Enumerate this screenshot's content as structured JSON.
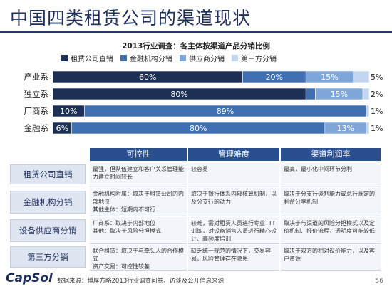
{
  "title": "中国四类租赁公司的渠道现状",
  "chart_data": {
    "type": "bar",
    "orientation": "horizontal",
    "stacked": true,
    "title": "2013行业调查：各主体按渠道产品分销比例",
    "categories": [
      "产业系",
      "独立系",
      "厂商系",
      "金融系"
    ],
    "series": [
      {
        "name": "租赁公司直销",
        "values": [
          60,
          80,
          10,
          6
        ],
        "labels": [
          "60%",
          "80%",
          "10%",
          "6%"
        ],
        "color": "#1c2f55"
      },
      {
        "name": "金融机构分销",
        "values": [
          20,
          3,
          89,
          80
        ],
        "labels": [
          "20%",
          "3%",
          "89%",
          "80%"
        ],
        "color": "#3f6fb0"
      },
      {
        "name": "供应商分销",
        "values": [
          15,
          15,
          0,
          13
        ],
        "labels": [
          "15%",
          "15%",
          "",
          "13%"
        ],
        "color": "#7fa6d8"
      },
      {
        "name": "第三方分销",
        "values": [
          5,
          2,
          1,
          1
        ],
        "labels": [
          "5%",
          "2%",
          "1%",
          "1%"
        ],
        "color": "#c3d6ef"
      }
    ],
    "xlim": [
      0,
      100
    ],
    "legend": "top"
  },
  "table": {
    "headers": [
      "可控性",
      "管理难度",
      "渠道利润率"
    ],
    "rows": [
      {
        "label": "租赁公司直销",
        "cells": [
          "最强，但队伍建立和客户关系管理能力建立时间较长",
          "较容易",
          "最高，最小化中间环节分利"
        ]
      },
      {
        "label": "金融机构分销",
        "cells": [
          "金融机构附属：取决于租赁公司的内部地位\n其他主体：短期内不可行",
          "取决于银行体系内部核算机制，以及分支行的动力",
          "取决于分支行谈判能力或总行既定的利益分享机制"
        ]
      },
      {
        "label": "设备供应商分销",
        "cells": [
          "厂商系：取决于内部地位\n其他：取决于风险分担模式",
          "较难，需对租赁人员进行专业TTT训练，对设备销售人员进行精心设计、高频度培训",
          "取决于与渠道的风险分担模式以及定价机制、报价流程，透明度可能较低"
        ]
      },
      {
        "label": "第三方分销",
        "cells": [
          "联合租赁：取决于与牵头人的合作模式\n资产交易：可控性较差",
          "缺乏统一规范的情况下，交易容易，风险管理存在隐患",
          "取决于双方的相对议价能力，以及客户资源"
        ]
      }
    ]
  },
  "footer": {
    "logo": "CapSol",
    "source": "数据来源：博厚方略2013行业调查问卷、访谈及公开信息来源",
    "page": "56"
  },
  "colors": {
    "header_bg": "#2a4f8f",
    "title": "#1e2f5a"
  }
}
